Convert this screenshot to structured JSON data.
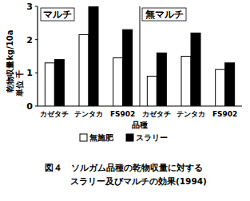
{
  "chart_data": {
    "type": "bar",
    "title": "図４　ソルガム品種の乾物収量に対する\nスラリー及びマルチの効果(1994)",
    "x_label": "品種",
    "y_label": "乾物収量kg/10a\n単位 千",
    "annotations": [
      "マルチ",
      "無マルチ"
    ],
    "categories": [
      "カゼタチ",
      "テンタカ",
      "FS902",
      "カゼタチ",
      "テンタカ",
      "FS902"
    ],
    "series": [
      {
        "name": "無施肥",
        "color": "#ffffff",
        "values": [
          1.3,
          2.15,
          1.45,
          0.9,
          1.5,
          1.1
        ]
      },
      {
        "name": "スラリー",
        "color": "#000000",
        "values": [
          1.4,
          3.0,
          2.3,
          1.6,
          2.2,
          1.3
        ]
      }
    ],
    "ylim": [
      0,
      3
    ],
    "yticks": [
      0,
      1,
      2,
      3
    ],
    "grid": false,
    "legend": "bottom"
  }
}
